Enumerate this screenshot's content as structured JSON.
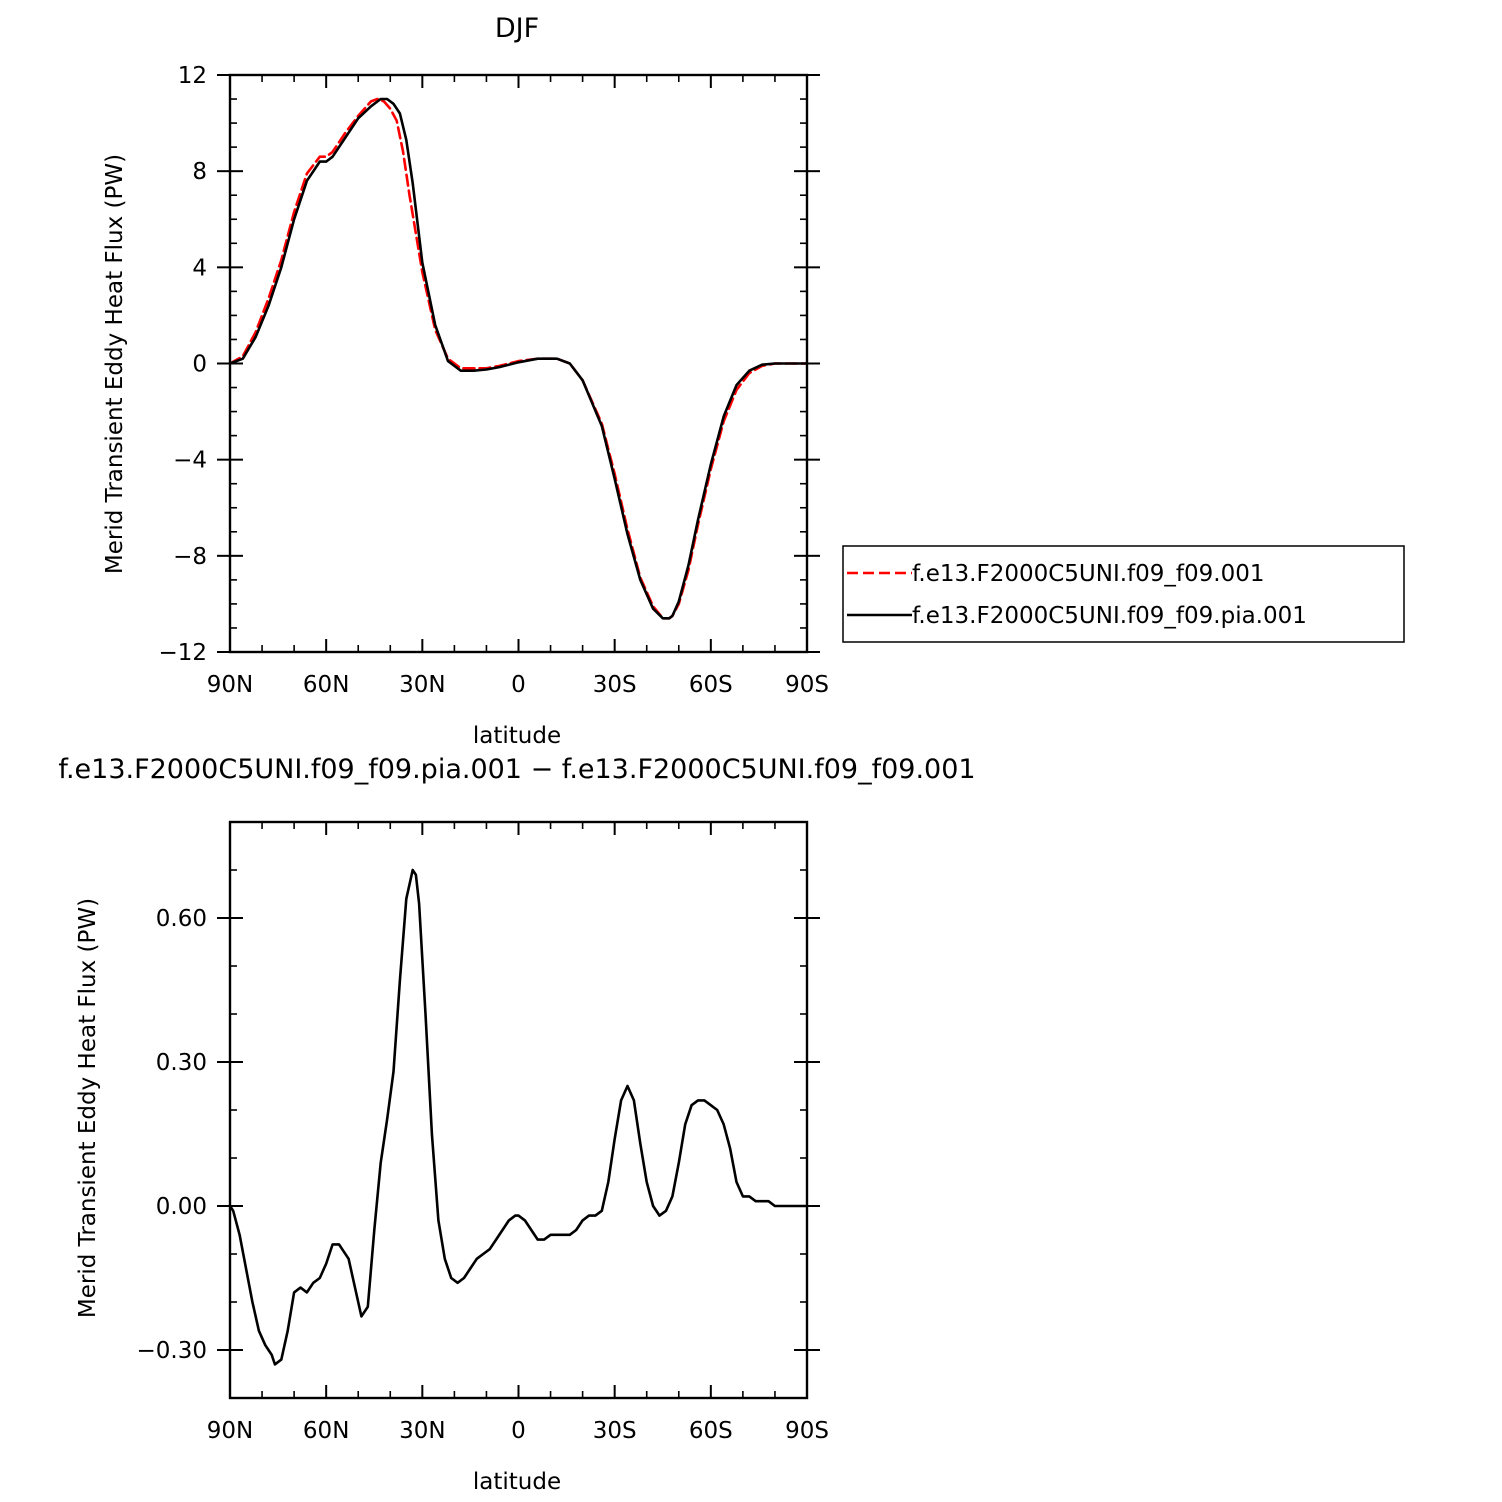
{
  "chart_data": [
    {
      "type": "line",
      "title": "DJF",
      "xlabel": "latitude",
      "ylabel": "Merid Transient Eddy Heat Flux (PW)",
      "xlim": [
        90,
        -90
      ],
      "ylim": [
        -12,
        12
      ],
      "xticks": [
        90,
        60,
        30,
        0,
        -30,
        -60,
        -90
      ],
      "xtick_labels": [
        "90N",
        "60N",
        "30N",
        "0",
        "30S",
        "60S",
        "90S"
      ],
      "yticks": [
        -12,
        -8,
        -4,
        0,
        4,
        8,
        12
      ],
      "ytick_labels": [
        "−12",
        "−8",
        "−4",
        "0",
        "4",
        "8",
        "12"
      ],
      "legend_position": "right",
      "series": [
        {
          "name": "f.e13.F2000C5UNI.f09_f09.001",
          "color": "#ff0000",
          "dash": "dashed",
          "x": [
            90,
            86,
            82,
            78,
            74,
            70,
            66,
            62,
            60,
            58,
            54,
            50,
            46,
            44,
            42,
            40,
            38,
            36,
            34,
            30,
            26,
            22,
            18,
            14,
            10,
            6,
            0,
            -6,
            -12,
            -16,
            -20,
            -26,
            -30,
            -34,
            -38,
            -42,
            -45,
            -47,
            -48,
            -50,
            -53,
            -56,
            -60,
            -64,
            -68,
            -72,
            -76,
            -80,
            -84,
            -90
          ],
          "y": [
            0,
            0.3,
            1.3,
            2.7,
            4.3,
            6.3,
            7.9,
            8.6,
            8.6,
            8.8,
            9.6,
            10.3,
            10.9,
            11.0,
            10.9,
            10.6,
            10.1,
            8.8,
            7.0,
            3.8,
            1.4,
            0.2,
            -0.2,
            -0.2,
            -0.2,
            -0.1,
            0.1,
            0.2,
            0.2,
            0.0,
            -0.7,
            -2.5,
            -4.6,
            -6.9,
            -8.9,
            -10.1,
            -10.6,
            -10.6,
            -10.5,
            -10.0,
            -8.6,
            -6.7,
            -4.4,
            -2.4,
            -1.1,
            -0.4,
            -0.1,
            0,
            0,
            0
          ]
        },
        {
          "name": "f.e13.F2000C5UNI.f09_f09.pia.001",
          "color": "#000000",
          "dash": "solid",
          "x": [
            90,
            86,
            82,
            78,
            74,
            70,
            66,
            62,
            60,
            58,
            54,
            50,
            46,
            43,
            41,
            39,
            37,
            35,
            33,
            30,
            26,
            22,
            18,
            14,
            10,
            6,
            0,
            -6,
            -12,
            -16,
            -20,
            -26,
            -30,
            -34,
            -38,
            -42,
            -45,
            -47,
            -48,
            -50,
            -53,
            -56,
            -60,
            -64,
            -68,
            -72,
            -76,
            -80,
            -84,
            -90
          ],
          "y": [
            0,
            0.2,
            1.1,
            2.4,
            4.0,
            6.0,
            7.6,
            8.4,
            8.4,
            8.6,
            9.4,
            10.2,
            10.7,
            11.0,
            11.0,
            10.8,
            10.4,
            9.3,
            7.5,
            4.2,
            1.6,
            0.1,
            -0.3,
            -0.3,
            -0.25,
            -0.15,
            0.05,
            0.2,
            0.2,
            0.0,
            -0.7,
            -2.6,
            -4.8,
            -7.1,
            -9.0,
            -10.2,
            -10.6,
            -10.6,
            -10.5,
            -9.9,
            -8.4,
            -6.5,
            -4.2,
            -2.2,
            -0.9,
            -0.3,
            -0.05,
            0,
            0,
            0
          ]
        }
      ]
    },
    {
      "type": "line",
      "title": "f.e13.F2000C5UNI.f09_f09.pia.001 − f.e13.F2000C5UNI.f09_f09.001",
      "xlabel": "latitude",
      "ylabel": "Merid Transient Eddy Heat Flux (PW)",
      "xlim": [
        90,
        -90
      ],
      "ylim": [
        -0.4,
        0.8
      ],
      "xticks": [
        90,
        60,
        30,
        0,
        -30,
        -60,
        -90
      ],
      "xtick_labels": [
        "90N",
        "60N",
        "30N",
        "0",
        "30S",
        "60S",
        "90S"
      ],
      "yticks": [
        -0.3,
        0,
        0.3,
        0.6
      ],
      "ytick_labels": [
        "−0.30",
        "0.00",
        "0.30",
        "0.60"
      ],
      "series": [
        {
          "color": "#000000",
          "dash": "solid",
          "x": [
            90,
            89,
            87,
            85,
            83,
            81,
            79,
            78,
            77,
            76,
            74,
            72,
            70,
            68,
            66,
            64,
            62,
            60,
            58,
            56,
            55,
            53,
            51,
            49,
            47,
            45,
            43,
            41,
            39,
            37,
            35,
            33,
            32,
            31,
            29,
            27,
            25,
            23,
            21,
            19,
            17,
            15,
            13,
            11,
            9,
            7,
            5,
            3,
            1,
            0,
            -2,
            -4,
            -6,
            -8,
            -10,
            -12,
            -14,
            -16,
            -18,
            -20,
            -22,
            -24,
            -26,
            -28,
            -30,
            -32,
            -34,
            -36,
            -38,
            -40,
            -42,
            -44,
            -46,
            -48,
            -50,
            -52,
            -54,
            -56,
            -58,
            -60,
            -62,
            -64,
            -66,
            -68,
            -70,
            -72,
            -74,
            -76,
            -78,
            -80,
            -82,
            -84,
            -86,
            -88,
            -90
          ],
          "y": [
            0,
            -0.01,
            -0.06,
            -0.13,
            -0.2,
            -0.26,
            -0.29,
            -0.3,
            -0.31,
            -0.33,
            -0.32,
            -0.26,
            -0.18,
            -0.17,
            -0.18,
            -0.16,
            -0.15,
            -0.12,
            -0.08,
            -0.08,
            -0.09,
            -0.11,
            -0.17,
            -0.23,
            -0.21,
            -0.05,
            0.09,
            0.18,
            0.28,
            0.47,
            0.64,
            0.7,
            0.69,
            0.63,
            0.4,
            0.15,
            -0.03,
            -0.11,
            -0.15,
            -0.16,
            -0.15,
            -0.13,
            -0.11,
            -0.1,
            -0.09,
            -0.07,
            -0.05,
            -0.03,
            -0.02,
            -0.02,
            -0.03,
            -0.05,
            -0.07,
            -0.07,
            -0.06,
            -0.06,
            -0.06,
            -0.06,
            -0.05,
            -0.03,
            -0.02,
            -0.02,
            -0.01,
            0.05,
            0.14,
            0.22,
            0.25,
            0.22,
            0.13,
            0.05,
            0.0,
            -0.02,
            -0.01,
            0.02,
            0.09,
            0.17,
            0.21,
            0.22,
            0.22,
            0.21,
            0.2,
            0.17,
            0.12,
            0.05,
            0.02,
            0.02,
            0.01,
            0.01,
            0.01,
            0.0,
            0.0,
            0,
            0,
            0,
            0
          ]
        }
      ]
    }
  ]
}
